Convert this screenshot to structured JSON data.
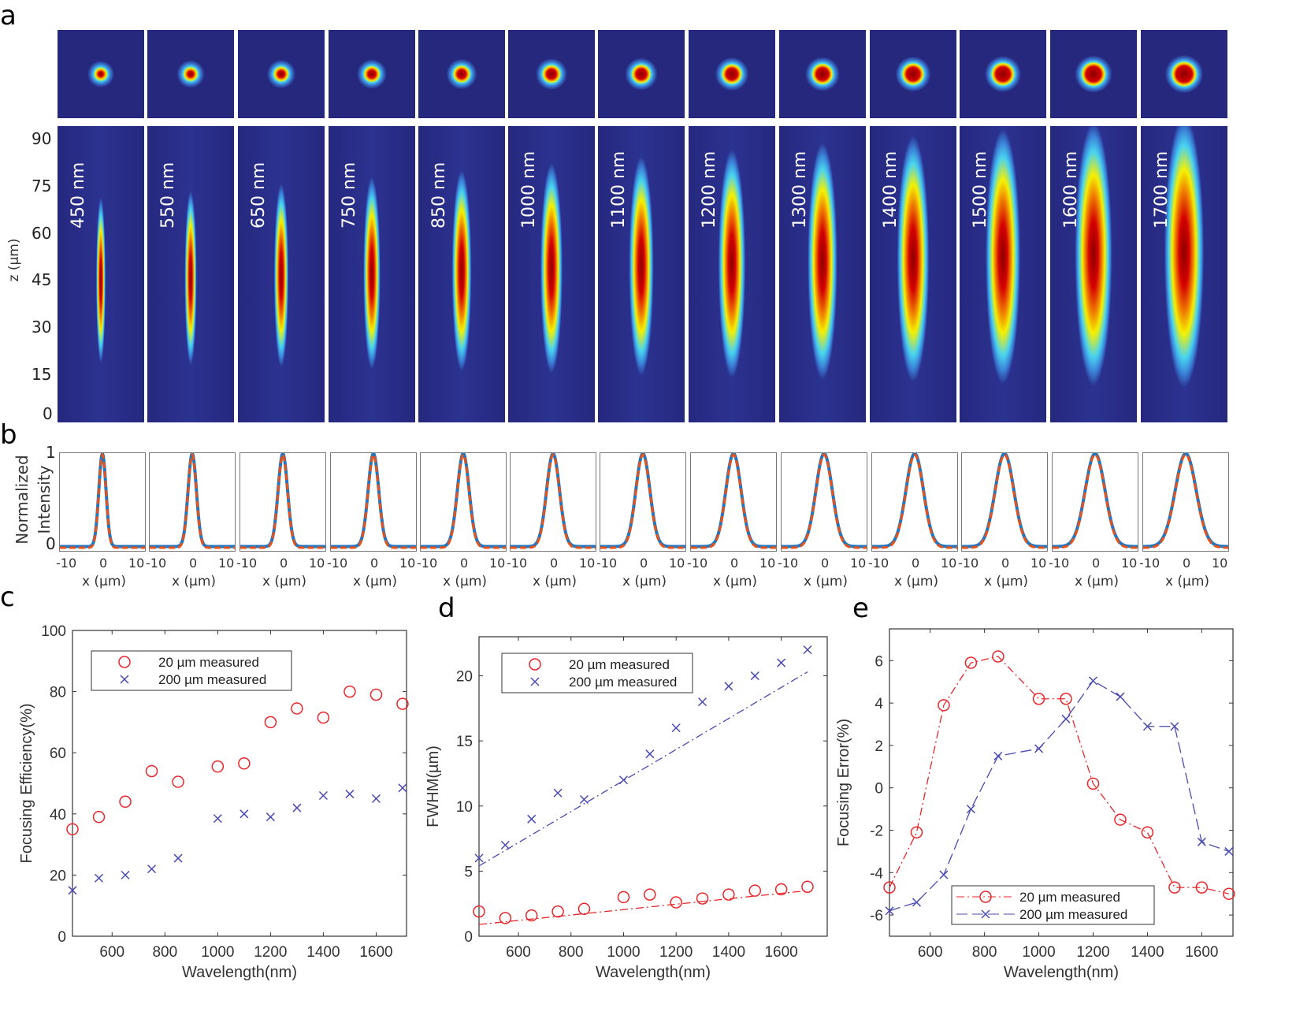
{
  "panel_labels": [
    "a",
    "b",
    "c",
    "d",
    "e"
  ],
  "panel_a": {
    "wavelengths": [
      "450 nm",
      "550 nm",
      "650 nm",
      "750 nm",
      "850 nm",
      "1000 nm",
      "1100 nm",
      "1200 nm",
      "1300 nm",
      "1400 nm",
      "1500 nm",
      "1600 nm",
      "1700 nm"
    ],
    "z_ticks": [
      "90",
      "75",
      "60",
      "45",
      "30",
      "15",
      "0"
    ],
    "z_label": "z (µm)",
    "colormap": [
      "#26287e",
      "#3a7fd6",
      "#49d3f0",
      "#f5f000",
      "#f08000",
      "#d40000",
      "#8a0000"
    ]
  },
  "panel_b": {
    "y_ticks": [
      "1",
      "0"
    ],
    "y_label_line1": "Normalized",
    "y_label_line2": "Intensity",
    "x_ticks": [
      "-10",
      "0",
      "10"
    ],
    "x_label": "x (µm)",
    "measured_color": "#1f77c4",
    "fit_color": "#e5531a"
  },
  "chart_data": [
    {
      "id": "c",
      "type": "scatter",
      "xlabel": "Wavelength(nm)",
      "ylabel": "Focusing Efficiency(%)",
      "xlim": [
        450,
        1715
      ],
      "ylim": [
        0,
        100
      ],
      "xticks": [
        600,
        800,
        1000,
        1200,
        1400,
        1600
      ],
      "yticks": [
        0,
        20,
        40,
        60,
        80,
        100
      ],
      "x": [
        450,
        550,
        650,
        750,
        850,
        1000,
        1100,
        1200,
        1300,
        1400,
        1500,
        1600,
        1700
      ],
      "legend": "top-left",
      "series": [
        {
          "name": "20 µm measured",
          "marker": "circle",
          "color": "#e8262a",
          "values": [
            35,
            39,
            44,
            54,
            50.5,
            55.5,
            56.5,
            70,
            74.5,
            71.5,
            80,
            79,
            76
          ]
        },
        {
          "name": "200 µm measured",
          "marker": "x",
          "color": "#4a4ab0",
          "values": [
            15,
            19,
            20,
            22,
            25.5,
            38.5,
            40,
            39,
            42,
            46,
            46.5,
            45,
            48.5
          ]
        }
      ]
    },
    {
      "id": "d",
      "type": "scatter",
      "xlabel": "Wavelength(nm)",
      "ylabel": "FWHM(µm)",
      "xlim": [
        450,
        1775
      ],
      "ylim": [
        0,
        23
      ],
      "xticks": [
        600,
        800,
        1000,
        1200,
        1400,
        1600
      ],
      "yticks": [
        0,
        5,
        10,
        15,
        20
      ],
      "x": [
        450,
        550,
        650,
        750,
        850,
        1000,
        1100,
        1200,
        1300,
        1400,
        1500,
        1600,
        1700
      ],
      "legend": "top-left",
      "series": [
        {
          "name": "20 µm measured",
          "marker": "circle",
          "color": "#e8262a",
          "values": [
            1.9,
            1.4,
            1.6,
            1.9,
            2.1,
            3.0,
            3.2,
            2.6,
            2.9,
            3.2,
            3.5,
            3.6,
            3.8
          ],
          "fit": [
            [
              450,
              0.9
            ],
            [
              1700,
              3.5
            ]
          ]
        },
        {
          "name": "200 µm measured",
          "marker": "x",
          "color": "#4a4ab0",
          "values": [
            6,
            7,
            9,
            11,
            10.5,
            12,
            14,
            16,
            18,
            19.2,
            20,
            21,
            22
          ],
          "fit": [
            [
              450,
              5.4
            ],
            [
              1700,
              20.3
            ]
          ]
        }
      ]
    },
    {
      "id": "e",
      "type": "line",
      "xlabel": "Wavelength(nm)",
      "ylabel": "Focusing Error(%)",
      "xlim": [
        450,
        1715
      ],
      "ylim": [
        -7,
        7.5
      ],
      "xticks": [
        600,
        800,
        1000,
        1200,
        1400,
        1600
      ],
      "yticks": [
        -6,
        -4,
        -2,
        0,
        2,
        4,
        6
      ],
      "x": [
        450,
        550,
        650,
        750,
        850,
        1000,
        1100,
        1200,
        1300,
        1400,
        1500,
        1600,
        1700
      ],
      "legend": "bottom-center",
      "series": [
        {
          "name": "20 µm measured",
          "marker": "circle",
          "line": "dash-dot",
          "color": "#e8262a",
          "values": [
            -4.7,
            -2.1,
            3.9,
            5.9,
            6.2,
            4.2,
            4.2,
            0.2,
            -1.5,
            -2.1,
            -4.7,
            -4.7,
            -5.0
          ]
        },
        {
          "name": "200 µm measured",
          "marker": "x",
          "line": "dashed",
          "color": "#4a4ab0",
          "values": [
            -5.8,
            -5.4,
            -4.1,
            -1.0,
            1.5,
            1.85,
            3.25,
            5.05,
            4.3,
            2.9,
            2.9,
            -2.55,
            -3.0
          ]
        }
      ]
    }
  ]
}
